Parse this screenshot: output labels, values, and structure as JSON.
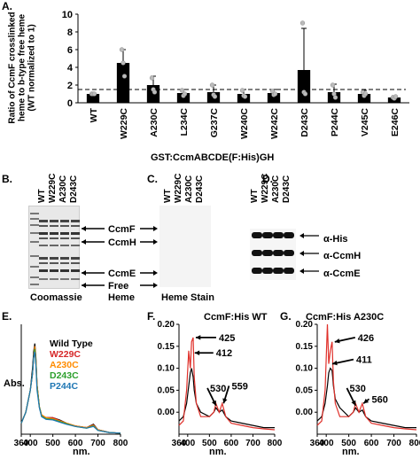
{
  "panels": {
    "A": {
      "letter": "A.",
      "ylabel_lines": [
        "Ratio of CcmF crosslinked",
        "heme to b-type free heme",
        "(WT normalized to 1)"
      ],
      "xlabel": "GST:CcmABCDE(F:His)GH",
      "yticks": [
        "0",
        "2",
        "4",
        "6",
        "8",
        "10"
      ]
    },
    "B": {
      "letter": "B.",
      "lanes": [
        "WT",
        "W229C",
        "A230C",
        "D243C"
      ],
      "caption": "Coomassie"
    },
    "C": {
      "letter": "C.",
      "lanes": [
        "WT",
        "W229C",
        "A230C",
        "D243C"
      ],
      "caption": "Heme Stain"
    },
    "BC_markers": [
      "CcmF",
      "CcmH",
      "CcmE",
      "Free",
      "Heme"
    ],
    "D": {
      "letter": "D.",
      "lanes": [
        "WT",
        "W229C",
        "A230C",
        "D243C"
      ],
      "rows": [
        "α-His",
        "α-CcmH",
        "α-CcmE"
      ]
    },
    "E": {
      "letter": "E.",
      "ylabel": "Abs.",
      "xlabel": "nm.",
      "legend": [
        {
          "name": "Wild Type",
          "color": "#000000"
        },
        {
          "name": "W229C",
          "color": "#d62728"
        },
        {
          "name": "A230C",
          "color": "#ff8c00"
        },
        {
          "name": "D243C",
          "color": "#2ca02c"
        },
        {
          "name": "P244C",
          "color": "#1f77b4"
        }
      ]
    },
    "F": {
      "letter": "F.",
      "title": "CcmF:His WT",
      "xlabel": "nm.",
      "peaks": [
        "425",
        "412",
        "530",
        "559"
      ]
    },
    "G": {
      "letter": "G.",
      "title": "CcmF:His A230C",
      "xlabel": "nm.",
      "peaks": [
        "426",
        "411",
        "530",
        "560"
      ]
    }
  },
  "chart_data": [
    {
      "type": "bar",
      "categories": [
        "WT",
        "W229C",
        "A230C",
        "L234C",
        "G237C",
        "W240C",
        "W242C",
        "D243C",
        "P244C",
        "V245C",
        "E246C"
      ],
      "values": [
        1.0,
        4.5,
        2.0,
        1.1,
        1.2,
        1.0,
        1.1,
        3.7,
        1.2,
        1.0,
        0.6
      ],
      "errors": [
        0.1,
        1.5,
        1.0,
        0.4,
        0.8,
        0.5,
        0.4,
        4.7,
        0.9,
        0.4,
        0.2
      ],
      "points": [
        [
          1,
          1,
          1
        ],
        [
          6,
          4.5,
          3
        ],
        [
          2.8,
          1.5,
          1.2
        ],
        [
          1.4,
          0.8,
          1
        ],
        [
          2,
          0.9,
          0.7
        ],
        [
          1.4,
          0.8,
          0.7
        ],
        [
          1.3,
          0.9,
          1
        ],
        [
          9,
          1.2,
          1
        ],
        [
          2,
          1,
          0.6
        ],
        [
          1.2,
          0.8,
          1
        ],
        [
          0.6,
          0.5,
          0.7
        ]
      ],
      "dashed_line": 1.5,
      "ylim": [
        0,
        10
      ],
      "xlabel": "GST:CcmABCDE(F:His)GH",
      "ylabel": "Ratio of CcmF crosslinked heme to b-type free heme (WT normalized to 1)"
    },
    {
      "type": "line",
      "panel": "E",
      "xlim": [
        360,
        800
      ],
      "ylim": [
        0,
        0.2
      ],
      "xticks": [
        360,
        400,
        500,
        600,
        700,
        800
      ],
      "series": [
        {
          "name": "Wild Type",
          "x": [
            360,
            380,
            400,
            410,
            415,
            420,
            425,
            430,
            440,
            450,
            470,
            500,
            530,
            560,
            600,
            650,
            680,
            700,
            750,
            800
          ],
          "y": [
            0.02,
            0.04,
            0.08,
            0.12,
            0.15,
            0.165,
            0.14,
            0.09,
            0.05,
            0.035,
            0.03,
            0.03,
            0.026,
            0.02,
            0.015,
            0.012,
            0.018,
            0.008,
            0.003,
            0.002
          ]
        },
        {
          "name": "W229C",
          "x": [
            360,
            380,
            400,
            410,
            415,
            420,
            425,
            430,
            440,
            450,
            470,
            500,
            530,
            560,
            600,
            650,
            680,
            700,
            750,
            800
          ],
          "y": [
            0.02,
            0.04,
            0.08,
            0.11,
            0.14,
            0.16,
            0.135,
            0.09,
            0.05,
            0.035,
            0.03,
            0.03,
            0.025,
            0.02,
            0.015,
            0.012,
            0.017,
            0.008,
            0.003,
            0.002
          ]
        },
        {
          "name": "A230C",
          "x": [
            360,
            380,
            400,
            410,
            415,
            420,
            425,
            430,
            440,
            450,
            470,
            500,
            530,
            560,
            600,
            650,
            680,
            700,
            750,
            800
          ],
          "y": [
            0.02,
            0.04,
            0.08,
            0.11,
            0.14,
            0.16,
            0.135,
            0.09,
            0.05,
            0.035,
            0.03,
            0.028,
            0.024,
            0.02,
            0.015,
            0.012,
            0.016,
            0.008,
            0.003,
            0.002
          ]
        },
        {
          "name": "D243C",
          "x": [
            360,
            380,
            400,
            410,
            415,
            420,
            425,
            430,
            440,
            450,
            470,
            500,
            530,
            560,
            600,
            650,
            680,
            700,
            750,
            800
          ],
          "y": [
            0.02,
            0.04,
            0.08,
            0.11,
            0.14,
            0.155,
            0.13,
            0.085,
            0.05,
            0.033,
            0.028,
            0.027,
            0.023,
            0.019,
            0.014,
            0.011,
            0.015,
            0.007,
            0.003,
            0.002
          ]
        },
        {
          "name": "P244C",
          "x": [
            360,
            380,
            400,
            410,
            415,
            420,
            425,
            430,
            440,
            450,
            470,
            500,
            530,
            560,
            600,
            650,
            680,
            700,
            750,
            800
          ],
          "y": [
            0.02,
            0.04,
            0.08,
            0.11,
            0.14,
            0.15,
            0.125,
            0.08,
            0.048,
            0.032,
            0.027,
            0.026,
            0.022,
            0.018,
            0.014,
            0.011,
            0.014,
            0.007,
            0.003,
            0.002
          ]
        }
      ]
    },
    {
      "type": "line",
      "panel": "F",
      "xlim": [
        360,
        800
      ],
      "ylim": [
        -0.05,
        0.2
      ],
      "yticks": [
        0,
        0.05,
        0.1,
        0.15,
        0.2
      ],
      "xticks": [
        360,
        400,
        500,
        600,
        700,
        800
      ],
      "series": [
        {
          "color": "#000000",
          "x": [
            360,
            380,
            395,
            405,
            412,
            418,
            425,
            430,
            440,
            460,
            500,
            520,
            530,
            545,
            559,
            575,
            600,
            650,
            700,
            750,
            800
          ],
          "y": [
            -0.02,
            -0.01,
            0.02,
            0.06,
            0.09,
            0.1,
            0.08,
            0.05,
            0.02,
            0.0,
            -0.01,
            0.0,
            0.01,
            0.0,
            0.005,
            -0.01,
            -0.02,
            -0.025,
            -0.03,
            -0.035,
            -0.035
          ]
        },
        {
          "color": "#e0302a",
          "x": [
            360,
            380,
            395,
            405,
            412,
            418,
            425,
            430,
            440,
            460,
            500,
            520,
            530,
            545,
            559,
            575,
            600,
            650,
            700,
            750,
            800
          ],
          "y": [
            -0.03,
            -0.02,
            0.05,
            0.14,
            0.1,
            0.16,
            0.17,
            0.08,
            0.02,
            -0.01,
            -0.01,
            0.0,
            0.02,
            0.0,
            0.02,
            -0.01,
            -0.025,
            -0.03,
            -0.035,
            -0.038,
            -0.04
          ]
        }
      ]
    },
    {
      "type": "line",
      "panel": "G",
      "xlim": [
        360,
        800
      ],
      "ylim": [
        -0.05,
        0.2
      ],
      "yticks": [
        0,
        0.05,
        0.1,
        0.15,
        0.2
      ],
      "xticks": [
        360,
        400,
        500,
        600,
        700,
        800
      ],
      "series": [
        {
          "color": "#000000",
          "x": [
            360,
            380,
            395,
            405,
            411,
            418,
            426,
            432,
            440,
            460,
            500,
            520,
            530,
            545,
            560,
            575,
            600,
            650,
            700,
            750,
            800
          ],
          "y": [
            -0.02,
            -0.01,
            0.02,
            0.06,
            0.09,
            0.1,
            0.095,
            0.06,
            0.03,
            0.01,
            -0.01,
            0.0,
            0.01,
            0.0,
            0.005,
            -0.01,
            -0.02,
            -0.025,
            -0.03,
            -0.035,
            -0.035
          ]
        },
        {
          "color": "#e0302a",
          "x": [
            360,
            380,
            395,
            405,
            411,
            418,
            426,
            432,
            440,
            460,
            500,
            520,
            530,
            545,
            560,
            575,
            600,
            650,
            700,
            750,
            800
          ],
          "y": [
            -0.03,
            -0.02,
            0.05,
            0.2,
            0.11,
            0.14,
            0.16,
            0.07,
            0.02,
            -0.01,
            -0.01,
            0.0,
            0.02,
            0.0,
            0.02,
            -0.01,
            -0.025,
            -0.03,
            -0.035,
            -0.038,
            -0.04
          ]
        }
      ]
    }
  ]
}
